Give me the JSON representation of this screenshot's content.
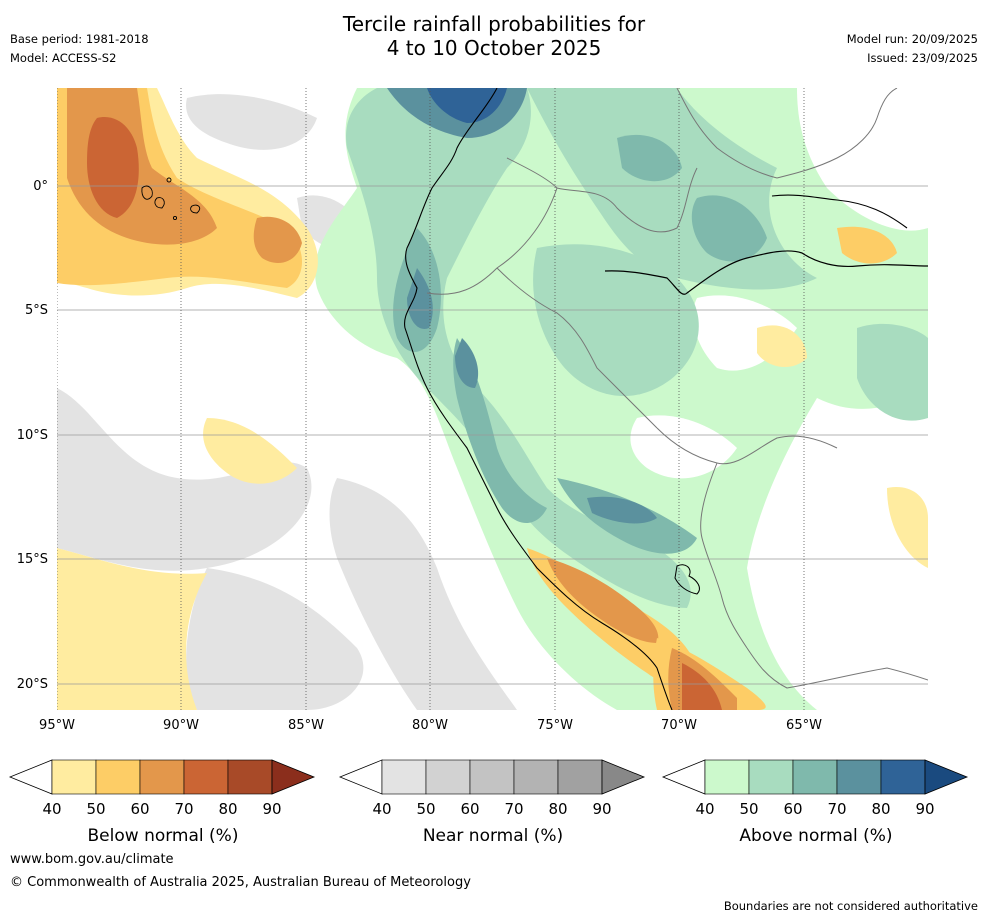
{
  "header": {
    "title_line1": "Tercile rainfall probabilities for",
    "title_line2": "4 to 10 October 2025",
    "base_period": "Base period: 1981-2018",
    "model": "Model: ACCESS-S2",
    "model_run": "Model run: 20/09/2025",
    "issued": "Issued: 23/09/2025"
  },
  "map": {
    "lat_labels": [
      "0°",
      "5°S",
      "10°S",
      "15°S",
      "20°S"
    ],
    "lon_labels": [
      "95°W",
      "90°W",
      "85°W",
      "80°W",
      "75°W",
      "70°W",
      "65°W"
    ],
    "lat_values": [
      0,
      -5,
      -10,
      -15,
      -20
    ],
    "lon_values": [
      -95,
      -90,
      -85,
      -80,
      -75,
      -70,
      -65
    ],
    "extent": {
      "lon_min": -95,
      "lon_max": -60,
      "lat_min": -21,
      "lat_max": 4
    }
  },
  "legend": {
    "ticks": [
      "40",
      "50",
      "60",
      "70",
      "80",
      "90"
    ],
    "below": {
      "title": "Below normal (%)",
      "colors": [
        "#ffffff",
        "#ffeca0",
        "#fdcd66",
        "#e3974b",
        "#cb6534",
        "#a84a28",
        "#8b2e1c"
      ]
    },
    "near": {
      "title": "Near normal (%)",
      "colors": [
        "#ffffff",
        "#e3e3e3",
        "#d2d2d2",
        "#c3c3c3",
        "#b3b3b3",
        "#a1a1a1",
        "#888888"
      ]
    },
    "above": {
      "title": "Above normal (%)",
      "colors": [
        "#ffffff",
        "#ccf9cc",
        "#a8dcbf",
        "#7fb9ac",
        "#5b919e",
        "#2f6397",
        "#1a4a7f"
      ]
    }
  },
  "footer": {
    "website": "www.bom.gov.au/climate",
    "copyright": "© Commonwealth of Australia 2025, Australian Bureau of Meteorology",
    "disclaimer": "Boundaries are not considered authoritative"
  }
}
